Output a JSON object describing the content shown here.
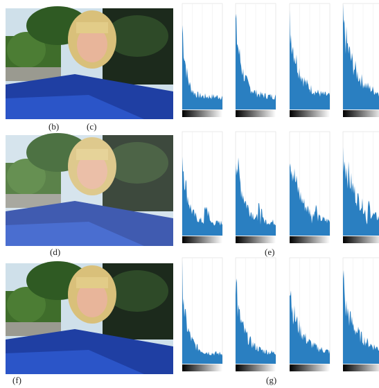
{
  "figure": {
    "panel_labels": [
      "(b)",
      "(c)",
      "(d)",
      "(e)",
      "(f)",
      "(g)"
    ]
  }
}
